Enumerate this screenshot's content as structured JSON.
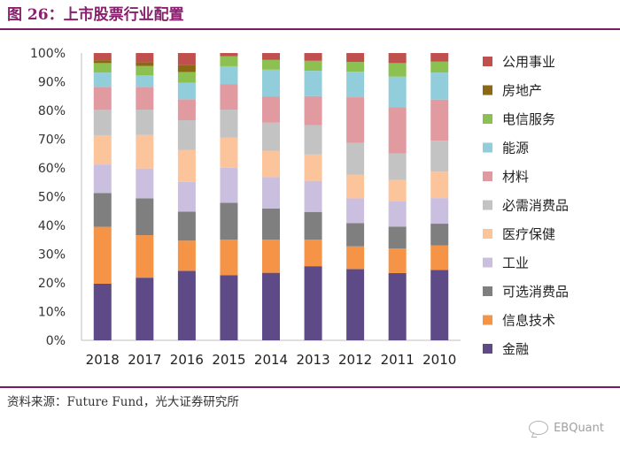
{
  "header": {
    "figure_title": "图 26：上市股票行业配置"
  },
  "footer": {
    "source": "资料来源：Future Fund，光大证券研究所",
    "brand": "EBQuant"
  },
  "colors": {
    "title": "#8a1f6d",
    "rule": "#7a1b63"
  },
  "chart_data": {
    "type": "stacked-bar",
    "title": "",
    "xlabel": "",
    "ylabel": "",
    "ylim": [
      0,
      100
    ],
    "y_ticks": [
      "0%",
      "10%",
      "20%",
      "30%",
      "40%",
      "50%",
      "60%",
      "70%",
      "80%",
      "90%",
      "100%"
    ],
    "grid": false,
    "legend_position": "right",
    "categories": [
      "2018",
      "2017",
      "2016",
      "2015",
      "2014",
      "2013",
      "2012",
      "2011",
      "2010"
    ],
    "series": [
      {
        "name": "金融",
        "color": "#5d4a86",
        "values": [
          19.7,
          21.8,
          24.2,
          22.7,
          23.5,
          25.8,
          24.8,
          23.4,
          24.5
        ]
      },
      {
        "name": "信息技术",
        "color": "#f59446",
        "values": [
          19.8,
          14.8,
          10.5,
          12.3,
          11.5,
          9.2,
          7.9,
          8.6,
          8.5
        ]
      },
      {
        "name": "可选消费品",
        "color": "#7f7f7f",
        "values": [
          11.8,
          12.8,
          10.1,
          12.9,
          10.9,
          9.7,
          8.1,
          7.6,
          7.6
        ]
      },
      {
        "name": "工业",
        "color": "#cbbfe0",
        "values": [
          9.9,
          10.4,
          10.3,
          12.2,
          10.9,
          10.8,
          8.6,
          8.9,
          8.9
        ]
      },
      {
        "name": "医疗保健",
        "color": "#fcc49a",
        "values": [
          10.2,
          11.7,
          11.2,
          10.4,
          9.2,
          9.2,
          8.3,
          7.3,
          9.2
        ]
      },
      {
        "name": "必需消费品",
        "color": "#c3c3c3",
        "values": [
          8.8,
          8.8,
          10.3,
          9.8,
          9.8,
          10.2,
          11.0,
          9.2,
          10.8
        ]
      },
      {
        "name": "材料",
        "color": "#e09aa0",
        "values": [
          8.0,
          7.9,
          7.3,
          8.9,
          9.1,
          10.1,
          15.9,
          16.1,
          14.3
        ]
      },
      {
        "name": "能源",
        "color": "#92cddc",
        "values": [
          5.0,
          4.0,
          5.8,
          6.2,
          9.3,
          8.8,
          8.9,
          10.7,
          9.4
        ]
      },
      {
        "name": "电信服务",
        "color": "#8cc152",
        "values": [
          3.3,
          3.3,
          3.7,
          3.5,
          3.4,
          3.5,
          3.4,
          4.7,
          3.8
        ]
      },
      {
        "name": "房地产",
        "color": "#8b6914",
        "values": [
          1.0,
          1.3,
          2.5,
          0.0,
          0.0,
          0.0,
          0.0,
          0.0,
          0.0
        ]
      },
      {
        "name": "公用事业",
        "color": "#c0504d",
        "values": [
          2.5,
          3.2,
          4.1,
          1.1,
          2.4,
          2.7,
          3.1,
          3.5,
          3.0
        ]
      }
    ]
  }
}
